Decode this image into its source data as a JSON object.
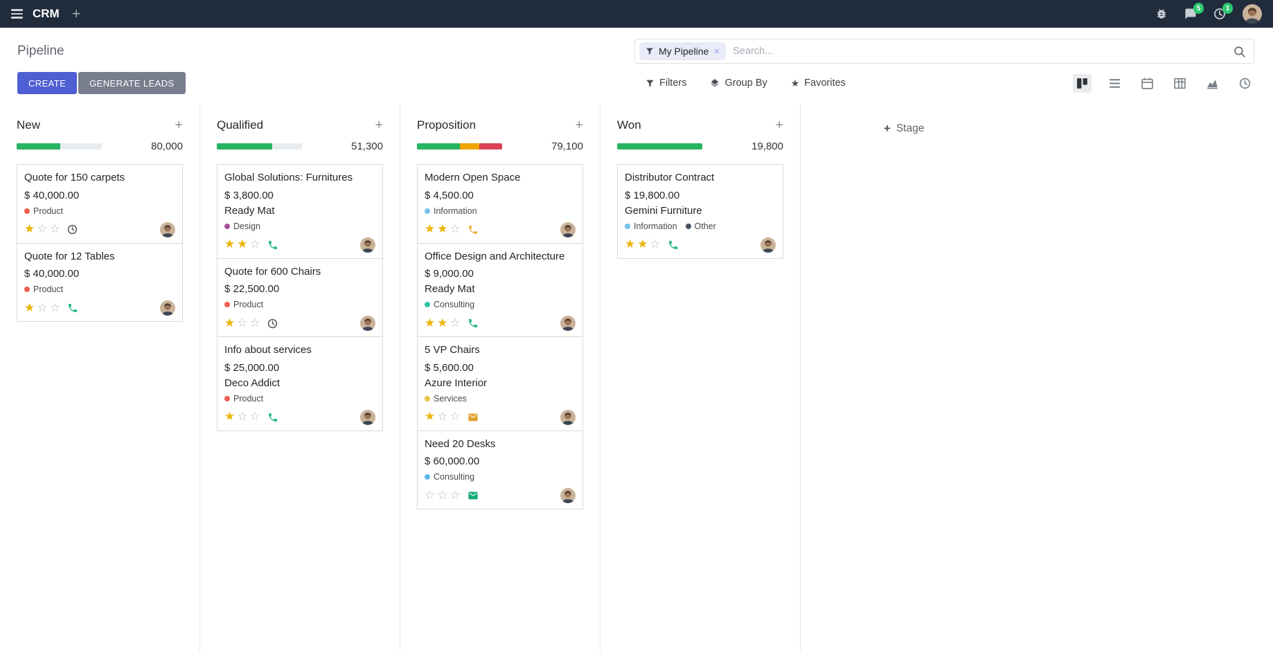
{
  "colors": {
    "topbar_bg": "#202b3b",
    "primary": "#4d5fd3",
    "secondary": "#787e8d",
    "success": "#28b463",
    "warning": "#f0a500",
    "danger": "#d94354",
    "star": "#edb306",
    "badge": "#2ac76f",
    "facet_bg": "#e9ebf8"
  },
  "icons": {
    "add_menu": "+",
    "facet_remove": "×",
    "favorites_star": "★",
    "column_add": "+",
    "stage_add": "+"
  },
  "topbar": {
    "app_name": "CRM",
    "message_badge": "5",
    "activity_badge": "1"
  },
  "control_panel": {
    "breadcrumb": "Pipeline",
    "buttons": {
      "create": "CREATE",
      "generate_leads": "GENERATE LEADS"
    },
    "search": {
      "facet_label": "My Pipeline",
      "placeholder": "Search..."
    },
    "menus": {
      "filters": "Filters",
      "group_by": "Group By",
      "favorites": "Favorites"
    }
  },
  "add_stage": {
    "label": "Stage"
  },
  "stages": [
    {
      "name": "New",
      "total": "80,000",
      "progress": [
        {
          "color": "#28b463",
          "pct": 51
        }
      ],
      "cards": [
        {
          "title": "Quote for 150 carpets",
          "amount": "$ 40,000.00",
          "partner": "",
          "tags": [
            {
              "label": "Product",
              "color": "#ee5f50"
            }
          ],
          "stars": 1,
          "activity": {
            "type": "clock",
            "color": "#52585e"
          }
        },
        {
          "title": "Quote for 12 Tables",
          "amount": "$ 40,000.00",
          "partner": "",
          "tags": [
            {
              "label": "Product",
              "color": "#ee5f50"
            }
          ],
          "stars": 1,
          "activity": {
            "type": "phone",
            "color": "#21b786"
          }
        }
      ]
    },
    {
      "name": "Qualified",
      "total": "51,300",
      "progress": [
        {
          "color": "#28b463",
          "pct": 65
        }
      ],
      "cards": [
        {
          "title": "Global Solutions: Furnitures",
          "amount": "$ 3,800.00",
          "partner": "Ready Mat",
          "tags": [
            {
              "label": "Design",
              "color": "#a94fa0"
            }
          ],
          "stars": 2,
          "activity": {
            "type": "phone",
            "color": "#21b786"
          }
        },
        {
          "title": "Quote for 600 Chairs",
          "amount": "$ 22,500.00",
          "partner": "",
          "tags": [
            {
              "label": "Product",
              "color": "#ee5f50"
            }
          ],
          "stars": 1,
          "activity": {
            "type": "clock",
            "color": "#52585e"
          }
        },
        {
          "title": "Info about services",
          "amount": "$ 25,000.00",
          "partner": "Deco Addict",
          "tags": [
            {
              "label": "Product",
              "color": "#ee5f50"
            }
          ],
          "stars": 1,
          "activity": {
            "type": "phone",
            "color": "#21b786"
          }
        }
      ]
    },
    {
      "name": "Proposition",
      "total": "79,100",
      "progress": [
        {
          "color": "#28b463",
          "pct": 50
        },
        {
          "color": "#f0a500",
          "pct": 23
        },
        {
          "color": "#d94354",
          "pct": 27
        }
      ],
      "cards": [
        {
          "title": "Modern Open Space",
          "amount": "$ 4,500.00",
          "partner": "",
          "tags": [
            {
              "label": "Information",
              "color": "#74c0e8"
            }
          ],
          "stars": 2,
          "activity": {
            "type": "phone",
            "color": "#f0ad3e"
          }
        },
        {
          "title": "Office Design and Architecture",
          "amount": "$ 9,000.00",
          "partner": "Ready Mat",
          "tags": [
            {
              "label": "Consulting",
              "color": "#35c2aa"
            }
          ],
          "stars": 2,
          "activity": {
            "type": "phone",
            "color": "#21b786"
          }
        },
        {
          "title": "5 VP Chairs",
          "amount": "$ 5,600.00",
          "partner": "Azure Interior",
          "tags": [
            {
              "label": "Services",
              "color": "#e8c34b"
            }
          ],
          "stars": 1,
          "activity": {
            "type": "mail",
            "color": "#e0a12f"
          }
        },
        {
          "title": "Need 20 Desks",
          "amount": "$ 60,000.00",
          "partner": "",
          "tags": [
            {
              "label": "Consulting",
              "color": "#5bb8e8"
            }
          ],
          "stars": 0,
          "activity": {
            "type": "mail",
            "color": "#17a97b"
          }
        }
      ]
    },
    {
      "name": "Won",
      "total": "19,800",
      "progress": [
        {
          "color": "#28b463",
          "pct": 100
        }
      ],
      "cards": [
        {
          "title": "Distributor Contract",
          "amount": "$ 19,800.00",
          "partner": "Gemini Furniture",
          "tags": [
            {
              "label": "Information",
              "color": "#74c0e8"
            },
            {
              "label": "Other",
              "color": "#44505c"
            }
          ],
          "stars": 2,
          "activity": {
            "type": "phone",
            "color": "#21b786"
          }
        }
      ]
    }
  ]
}
